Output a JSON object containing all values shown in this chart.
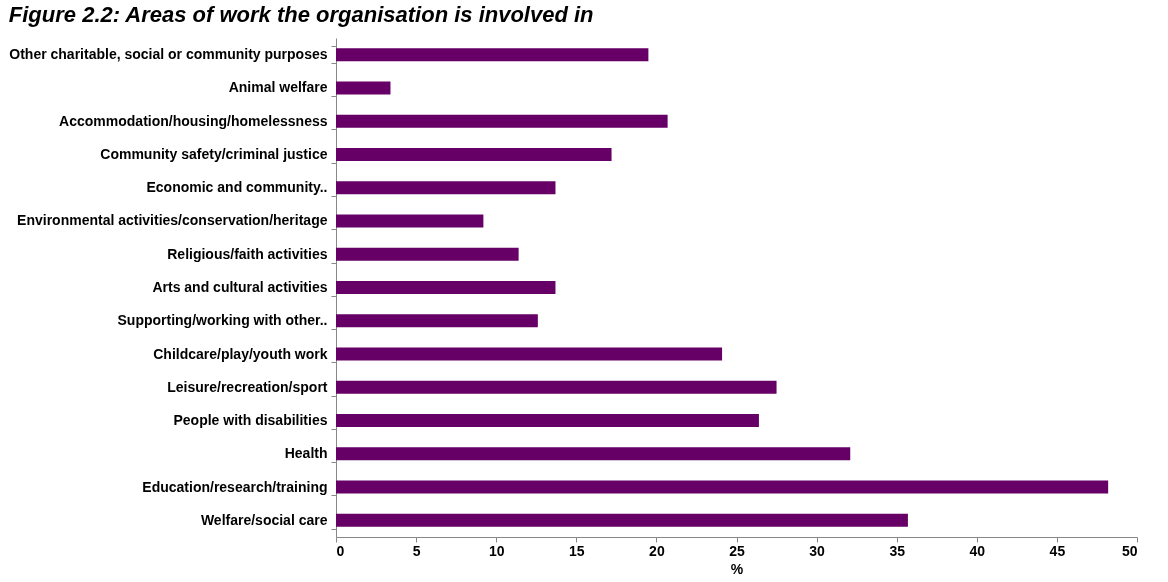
{
  "chart_data": {
    "type": "bar",
    "orientation": "horizontal",
    "title": "Figure 2.2: Areas of work the organisation is involved in",
    "xlabel": "%",
    "categories": [
      "Other charitable, social or community purposes",
      "Animal welfare",
      "Accommodation/housing/homelessness",
      "Community safety/criminal  justice",
      "Economic and community..",
      "Environmental activities/conservation/heritage",
      "Religious/faith activities",
      "Arts and cultural activities",
      "Supporting/working with other..",
      "Childcare/play/youth work",
      "Leisure/recreation/sport",
      "People with disabilities",
      "Health",
      "Education/research/training",
      "Welfare/social care"
    ],
    "values": [
      19.5,
      3.4,
      20.7,
      17.2,
      13.7,
      9.2,
      11.4,
      13.7,
      12.6,
      24.1,
      27.5,
      26.4,
      32.1,
      48.2,
      35.7
    ],
    "color": "#660066",
    "xlim": [
      0,
      50
    ],
    "xticks": [
      0,
      5,
      10,
      15,
      20,
      25,
      30,
      35,
      40,
      45,
      50
    ],
    "grid": false
  }
}
